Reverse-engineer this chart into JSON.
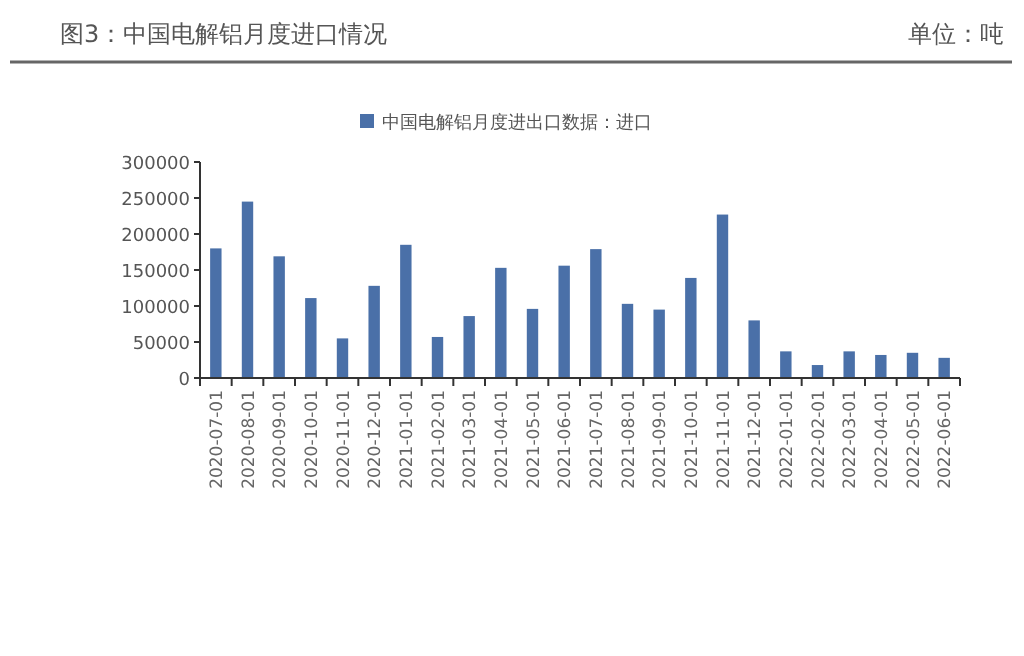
{
  "chart_data": {
    "type": "bar",
    "title": "图3：中国电解铝月度进口情况",
    "annotations": [
      "单位：吨"
    ],
    "categories": [
      "2020-07-01",
      "2020-08-01",
      "2020-09-01",
      "2020-10-01",
      "2020-11-01",
      "2020-12-01",
      "2021-01-01",
      "2021-02-01",
      "2021-03-01",
      "2021-04-01",
      "2021-05-01",
      "2021-06-01",
      "2021-07-01",
      "2021-08-01",
      "2021-09-01",
      "2021-10-01",
      "2021-11-01",
      "2021-12-01",
      "2022-01-01",
      "2022-02-01",
      "2022-03-01",
      "2022-04-01",
      "2022-05-01",
      "2022-06-01"
    ],
    "series": [
      {
        "name": "中国电解铝月度进出口数据：进口",
        "color": "#4a70a8",
        "values": [
          180000,
          245000,
          169000,
          111000,
          55000,
          128000,
          185000,
          57000,
          86000,
          153000,
          96000,
          156000,
          179000,
          103000,
          95000,
          139000,
          227000,
          80000,
          37000,
          18000,
          37000,
          32000,
          35000,
          28000
        ]
      }
    ],
    "ylim": [
      0,
      300000
    ],
    "yticks": [
      0,
      50000,
      100000,
      150000,
      200000,
      250000,
      300000
    ],
    "grid": false,
    "legend": "top"
  }
}
